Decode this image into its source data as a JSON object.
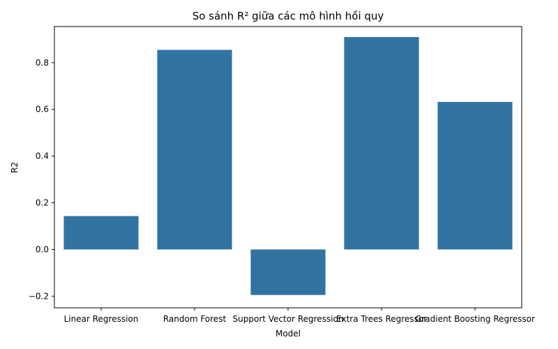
{
  "chart_data": {
    "type": "bar",
    "title": "So sánh R² giữa các mô hình hồi quy",
    "xlabel": "Model",
    "ylabel": "R2",
    "categories": [
      "Linear Regression",
      "Random Forest",
      "Support Vector Regression",
      "Extra Trees Regressor",
      "Gradient Boosting Regressor"
    ],
    "values": [
      0.143,
      0.855,
      -0.195,
      0.91,
      0.632
    ],
    "ylim": [
      -0.25,
      0.955
    ],
    "yticks": [
      -0.2,
      0.0,
      0.2,
      0.4,
      0.6,
      0.8
    ],
    "ytick_labels": [
      "−0.2",
      "0.0",
      "0.2",
      "0.4",
      "0.6",
      "0.8"
    ],
    "grid": false,
    "bar_color": "#3274a1"
  }
}
